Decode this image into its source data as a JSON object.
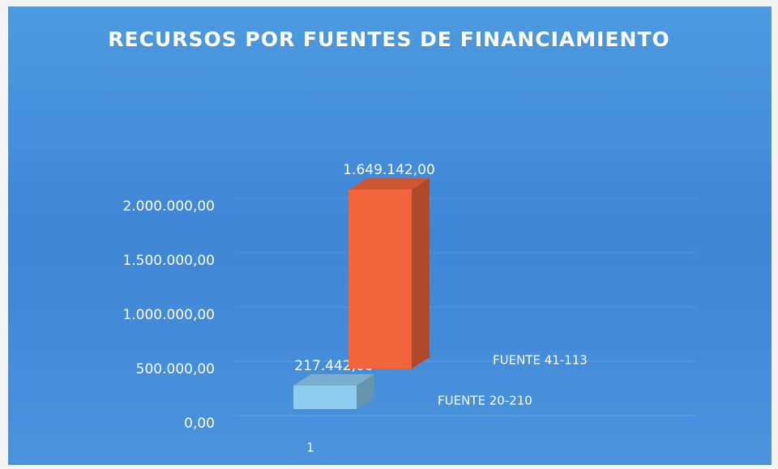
{
  "chart_data": {
    "type": "bar3d",
    "title": "RECURSOS POR FUENTES DE FINANCIAMIENTO",
    "categories": [
      "1"
    ],
    "series": [
      {
        "name": "FUENTE 20-210",
        "color": "#8fcdf0",
        "values": [
          217442
        ],
        "value_labels": [
          "217.442,00"
        ]
      },
      {
        "name": "FUENTE 41-113",
        "color": "#f2653c",
        "values": [
          1649142
        ],
        "value_labels": [
          "1.649.142,00"
        ]
      }
    ],
    "ylim": [
      0,
      2000000
    ],
    "yticks": [
      {
        "value": 0,
        "label": "0,00"
      },
      {
        "value": 500000,
        "label": "500.000,00"
      },
      {
        "value": 1000000,
        "label": "1.000.000,00"
      },
      {
        "value": 1500000,
        "label": "1.500.000,00"
      },
      {
        "value": 2000000,
        "label": "2.000.000,00"
      }
    ],
    "grid": true
  }
}
